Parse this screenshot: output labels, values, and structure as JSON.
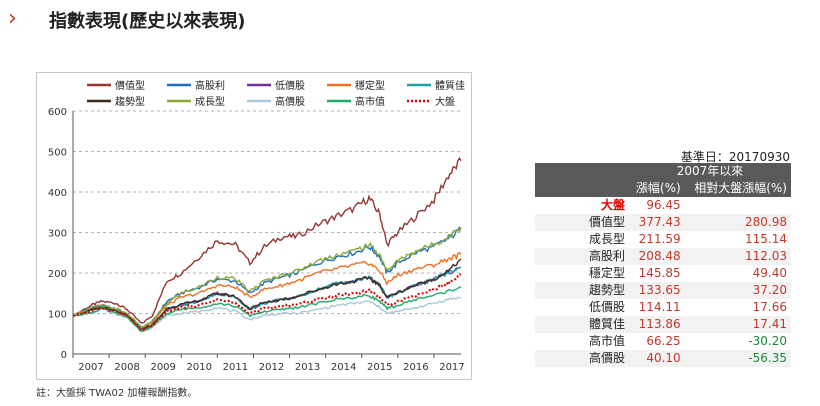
{
  "header": {
    "title": "指數表現(歷史以來表現)"
  },
  "icons": {
    "chevron": "chevron-right-icon"
  },
  "note": "註：大盤採 TWA02 加權報酬指數。",
  "table": {
    "base_date": "基準日：20170930",
    "period": "2007年以來",
    "col_return": "漲幅(%)",
    "col_relative": "相對大盤漲幅(%)",
    "rows": [
      {
        "name": "大盤",
        "ret": "96.45",
        "rel": ""
      },
      {
        "name": "價值型",
        "ret": "377.43",
        "rel": "280.98"
      },
      {
        "name": "成長型",
        "ret": "211.59",
        "rel": "115.14"
      },
      {
        "name": "高股利",
        "ret": "208.48",
        "rel": "112.03"
      },
      {
        "name": "穩定型",
        "ret": "145.85",
        "rel": "49.40"
      },
      {
        "name": "趨勢型",
        "ret": "133.65",
        "rel": "37.20"
      },
      {
        "name": "低價股",
        "ret": "114.11",
        "rel": "17.66"
      },
      {
        "name": "體質佳",
        "ret": "113.86",
        "rel": "17.41"
      },
      {
        "name": "高市值",
        "ret": "66.25",
        "rel": "-30.20"
      },
      {
        "name": "高價股",
        "ret": "40.10",
        "rel": "-56.35"
      }
    ]
  },
  "chart_data": {
    "type": "line",
    "title": "",
    "xlabel": "",
    "ylabel": "",
    "x_ticks": [
      "2007",
      "2008",
      "2009",
      "2010",
      "2011",
      "2012",
      "2013",
      "2014",
      "2015",
      "2016",
      "2017"
    ],
    "y_ticks": [
      "0",
      "100",
      "200",
      "300",
      "400",
      "500",
      "600"
    ],
    "ylim": [
      0,
      600
    ],
    "xlim": [
      2007,
      2017.75
    ],
    "grid": "horizontal dashed",
    "legend_position": "top",
    "x": [
      2007.0,
      2007.5,
      2007.8,
      2008.2,
      2008.5,
      2008.9,
      2009.2,
      2009.6,
      2010.0,
      2010.5,
      2011.0,
      2011.5,
      2011.9,
      2012.3,
      2012.8,
      2013.2,
      2013.8,
      2014.3,
      2014.8,
      2015.2,
      2015.5,
      2015.7,
      2016.0,
      2016.5,
      2017.0,
      2017.4,
      2017.75
    ],
    "series": [
      {
        "name": "價值型",
        "color": "#943634",
        "style": "solid",
        "values": [
          95,
          120,
          130,
          125,
          110,
          75,
          95,
          180,
          200,
          240,
          280,
          270,
          225,
          265,
          290,
          290,
          320,
          340,
          360,
          385,
          345,
          270,
          300,
          340,
          380,
          440,
          477
        ]
      },
      {
        "name": "高股利",
        "color": "#1f6dc4",
        "style": "solid",
        "values": [
          95,
          115,
          120,
          110,
          100,
          65,
          80,
          130,
          150,
          165,
          185,
          180,
          150,
          175,
          190,
          200,
          225,
          240,
          250,
          265,
          240,
          200,
          225,
          250,
          265,
          285,
          309
        ]
      },
      {
        "name": "低價股",
        "color": "#7030a0",
        "style": "solid",
        "values": [
          95,
          110,
          118,
          108,
          95,
          60,
          70,
          110,
          120,
          130,
          150,
          140,
          110,
          125,
          135,
          140,
          160,
          175,
          180,
          190,
          170,
          140,
          150,
          170,
          185,
          200,
          214
        ]
      },
      {
        "name": "穩定型",
        "color": "#f07020",
        "style": "solid",
        "values": [
          95,
          110,
          115,
          110,
          98,
          65,
          78,
          120,
          140,
          150,
          170,
          165,
          140,
          160,
          170,
          180,
          200,
          210,
          220,
          225,
          205,
          175,
          195,
          210,
          220,
          235,
          246
        ]
      },
      {
        "name": "體質佳",
        "color": "#1f9fa0",
        "style": "solid",
        "values": [
          95,
          110,
          118,
          108,
          95,
          60,
          70,
          110,
          120,
          130,
          150,
          140,
          110,
          125,
          135,
          140,
          160,
          175,
          180,
          190,
          170,
          140,
          150,
          170,
          185,
          200,
          214
        ]
      },
      {
        "name": "趨勢型",
        "color": "#3d2b1f",
        "style": "solid",
        "values": [
          95,
          108,
          115,
          105,
          95,
          62,
          72,
          112,
          122,
          132,
          150,
          142,
          112,
          128,
          135,
          142,
          160,
          172,
          180,
          188,
          168,
          140,
          152,
          170,
          185,
          205,
          234
        ]
      },
      {
        "name": "成長型",
        "color": "#8aa838",
        "style": "solid",
        "values": [
          95,
          115,
          120,
          112,
          100,
          65,
          80,
          125,
          150,
          165,
          190,
          185,
          155,
          180,
          195,
          205,
          230,
          245,
          255,
          270,
          245,
          205,
          230,
          255,
          270,
          290,
          312
        ]
      },
      {
        "name": "高價股",
        "color": "#a8c8d8",
        "style": "solid",
        "values": [
          95,
          100,
          110,
          100,
          90,
          55,
          65,
          95,
          100,
          105,
          115,
          105,
          85,
          95,
          100,
          100,
          110,
          120,
          125,
          130,
          115,
          100,
          105,
          115,
          125,
          135,
          140
        ]
      },
      {
        "name": "高市值",
        "color": "#1faa6a",
        "style": "solid",
        "values": [
          95,
          102,
          112,
          100,
          92,
          55,
          68,
          100,
          110,
          115,
          125,
          118,
          95,
          105,
          110,
          115,
          125,
          135,
          140,
          145,
          130,
          112,
          120,
          135,
          145,
          155,
          166
        ]
      },
      {
        "name": "大盤",
        "color": "#e00000",
        "style": "dotted",
        "values": [
          95,
          105,
          115,
          105,
          95,
          58,
          70,
          105,
          115,
          120,
          135,
          125,
          100,
          112,
          118,
          122,
          135,
          145,
          150,
          158,
          140,
          120,
          130,
          145,
          160,
          175,
          196
        ]
      }
    ]
  }
}
